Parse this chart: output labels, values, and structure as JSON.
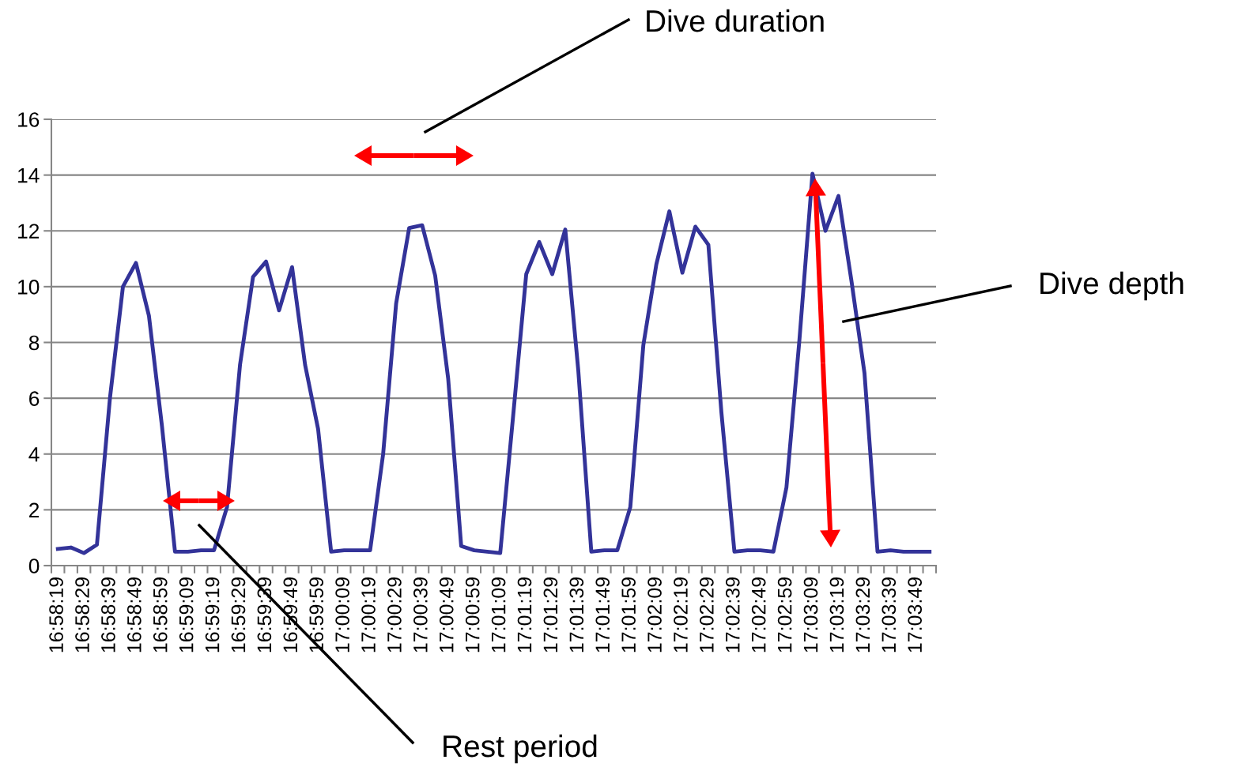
{
  "chart_data": {
    "type": "line",
    "categories": [
      "16:58:19",
      null,
      "16:58:29",
      null,
      "16:58:39",
      null,
      "16:58:49",
      null,
      "16:58:59",
      null,
      "16:59:09",
      null,
      "16:59:19",
      null,
      "16:59:29",
      null,
      "16:59:39",
      null,
      "16:59:49",
      null,
      "16:59:59",
      null,
      "17:00:09",
      null,
      "17:00:19",
      null,
      "17:00:29",
      null,
      "17:00:39",
      null,
      "17:00:49",
      null,
      "17:00:59",
      null,
      "17:01:09",
      null,
      "17:01:19",
      null,
      "17:01:29",
      null,
      "17:01:39",
      null,
      "17:01:49",
      null,
      "17:01:59",
      null,
      "17:02:09",
      null,
      "17:02:19",
      null,
      "17:02:29",
      null,
      "17:02:39",
      null,
      "17:02:49",
      null,
      "17:02:59",
      null,
      "17:03:09",
      null,
      "17:03:19",
      null,
      "17:03:29",
      null,
      "17:03:39",
      null,
      "17:03:49",
      null
    ],
    "series": [
      {
        "color": "#333399",
        "values": [
          0.6,
          0.65,
          0.45,
          0.75,
          6.0,
          10.0,
          10.85,
          8.95,
          5.0,
          0.5,
          0.5,
          0.55,
          0.55,
          2.1,
          7.2,
          10.35,
          10.9,
          9.15,
          10.7,
          7.2,
          4.9,
          0.5,
          0.55,
          0.55,
          0.55,
          4.0,
          9.4,
          12.1,
          12.2,
          10.4,
          6.7,
          0.7,
          0.55,
          0.5,
          0.45,
          5.4,
          10.45,
          11.6,
          10.45,
          12.05,
          7.0,
          0.5,
          0.55,
          0.55,
          2.1,
          7.9,
          10.8,
          12.7,
          10.5,
          12.15,
          11.5,
          5.5,
          0.5,
          0.55,
          0.55,
          0.5,
          2.8,
          8.1,
          14.05,
          12.0,
          13.25,
          10.2,
          6.9,
          0.5,
          0.55,
          0.5,
          0.5,
          0.5
        ]
      }
    ],
    "ylim": [
      0,
      16
    ],
    "yticks": [
      0,
      2,
      4,
      6,
      8,
      10,
      12,
      14,
      16
    ],
    "grid": "y",
    "marker": "none",
    "line_style": "solid",
    "annotations": [
      "Dive duration",
      "Dive depth",
      "Rest period"
    ]
  }
}
